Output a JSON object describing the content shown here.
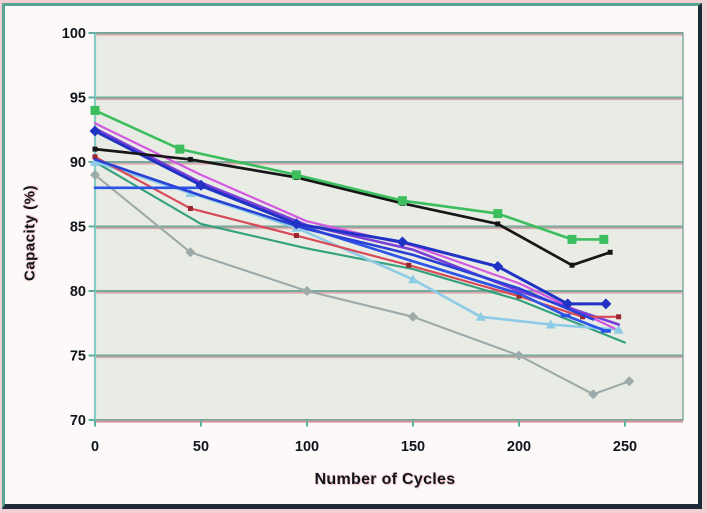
{
  "chart_data": {
    "type": "line",
    "title": "",
    "xlabel": "Number of Cycles",
    "ylabel": "Capacity (%)",
    "xlim": [
      0,
      277
    ],
    "ylim": [
      70,
      100
    ],
    "x_ticks": [
      0,
      50,
      100,
      150,
      200,
      250
    ],
    "y_ticks": [
      70,
      75,
      80,
      85,
      90,
      95,
      100
    ],
    "grid": "horizontal",
    "legend": "none",
    "plot_bg_color": "#e9ece4",
    "gridline_color": "#78a79b",
    "gridline_fringe_color": "#dca8ac",
    "y_axis_color": "#84ccc4",
    "x_axis_color": "#d295a0",
    "tick_color": "#5fae9f",
    "label_color": "#10161d",
    "series": [
      {
        "name": "gray-diamonds",
        "color": "#9cabaa",
        "width": 2.1,
        "marker": "diamond",
        "marker_size": 8,
        "marker_points": "all",
        "points": [
          [
            0,
            89
          ],
          [
            45,
            83
          ],
          [
            100,
            80
          ],
          [
            150,
            78
          ],
          [
            200,
            75
          ],
          [
            235,
            72
          ],
          [
            252,
            73
          ]
        ]
      },
      {
        "name": "sea-green-line",
        "color": "#33a07e",
        "width": 2.1,
        "marker": "none",
        "marker_size": 0,
        "marker_points": "none",
        "points": [
          [
            0,
            90
          ],
          [
            50,
            85.2
          ],
          [
            100,
            83.3
          ],
          [
            150,
            81.7
          ],
          [
            200,
            79.3
          ],
          [
            250,
            76
          ]
        ]
      },
      {
        "name": "cyan-triangles",
        "color": "#8ecbe6",
        "width": 2.6,
        "marker": "triangle",
        "marker_size": 8,
        "marker_points": "all",
        "points": [
          [
            0,
            90
          ],
          [
            45,
            87.6
          ],
          [
            95,
            84.9
          ],
          [
            150,
            80.9
          ],
          [
            182,
            78
          ],
          [
            215,
            77.4
          ],
          [
            247,
            77
          ]
        ]
      },
      {
        "name": "magenta-line",
        "color": "#d35ae0",
        "width": 2.2,
        "marker": "none",
        "marker_size": 0,
        "marker_points": "none",
        "points": [
          [
            0,
            93
          ],
          [
            50,
            89
          ],
          [
            100,
            85.4
          ],
          [
            150,
            83.5
          ],
          [
            200,
            80.6
          ],
          [
            245,
            77.1
          ]
        ]
      },
      {
        "name": "violet-line",
        "color": "#7b3fd8",
        "width": 2.6,
        "marker": "none",
        "marker_size": 0,
        "marker_points": "none",
        "points": [
          [
            0,
            92.6
          ],
          [
            50,
            88.4
          ],
          [
            100,
            85.1
          ],
          [
            150,
            83.2
          ],
          [
            200,
            80
          ],
          [
            247,
            77.4
          ]
        ]
      },
      {
        "name": "red-squares",
        "color": "#d84a58",
        "marker_color": "#9c2430",
        "width": 2.2,
        "marker": "square",
        "marker_size": 5,
        "marker_points": "all",
        "points": [
          [
            0,
            90.4
          ],
          [
            45,
            86.4
          ],
          [
            95,
            84.3
          ],
          [
            148,
            82
          ],
          [
            200,
            79.6
          ],
          [
            230,
            78
          ],
          [
            247,
            78
          ]
        ]
      },
      {
        "name": "blue-dashes",
        "color": "#2c55e8",
        "width": 2.7,
        "marker": "dash",
        "marker_size": 10,
        "marker_points": [
          5,
          6
        ],
        "points": [
          [
            0,
            88
          ],
          [
            52,
            88
          ],
          [
            100,
            84.9
          ],
          [
            150,
            82.3
          ],
          [
            200,
            79.8
          ],
          [
            222,
            78.1
          ],
          [
            241,
            76.9
          ]
        ]
      },
      {
        "name": "royal-blue-line",
        "color": "#2a41d6",
        "width": 2.6,
        "marker": "none",
        "marker_size": 0,
        "marker_points": "none",
        "points": [
          [
            0,
            90.2
          ],
          [
            50,
            87.4
          ],
          [
            100,
            84.8
          ],
          [
            150,
            82.8
          ],
          [
            200,
            80.2
          ],
          [
            235,
            77.8
          ]
        ]
      },
      {
        "name": "navy-diamonds",
        "color": "#2133c4",
        "width": 3,
        "marker": "diamond",
        "marker_size": 9,
        "marker_points": "all",
        "points": [
          [
            0,
            92.4
          ],
          [
            50,
            88.2
          ],
          [
            95,
            85.2
          ],
          [
            145,
            83.8
          ],
          [
            190,
            81.9
          ],
          [
            223,
            79
          ],
          [
            241,
            79
          ]
        ]
      },
      {
        "name": "black-squares",
        "color": "#161616",
        "width": 2.7,
        "marker": "square",
        "marker_size": 5,
        "marker_points": "all",
        "points": [
          [
            0,
            91
          ],
          [
            45,
            90.2
          ],
          [
            95,
            88.8
          ],
          [
            145,
            86.8
          ],
          [
            190,
            85.2
          ],
          [
            225,
            82
          ],
          [
            243,
            83
          ]
        ]
      },
      {
        "name": "green-squares",
        "color": "#3cbe5e",
        "width": 2.6,
        "marker": "square",
        "marker_size": 9,
        "marker_points": "all",
        "points": [
          [
            0,
            94
          ],
          [
            40,
            91
          ],
          [
            95,
            89
          ],
          [
            145,
            87
          ],
          [
            190,
            86
          ],
          [
            225,
            84
          ],
          [
            240,
            84
          ]
        ]
      }
    ]
  }
}
